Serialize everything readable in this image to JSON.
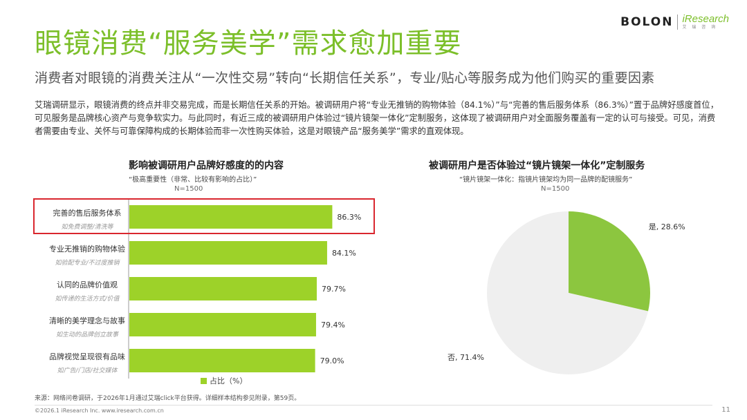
{
  "brand": {
    "bolon": "BOLON",
    "iresearch": "iResearch",
    "iresearch_cn": "艾 瑞 咨 询"
  },
  "title": "眼镜消费“服务美学”需求愈加重要",
  "subtitle": "消费者对眼镜的消费关注从“一次性交易”转向“长期信任关系”，专业/贴心等服务成为他们购买的重要因素",
  "body_text": "艾瑞调研显示，眼镜消费的终点并非交易完成，而是长期信任关系的开始。被调研用户将“专业无推销的购物体验（84.1%）”与“完善的售后服务体系（86.3%）”置于品牌好感度首位，可见服务是品牌核心资产与竞争软实力。与此同时，有近三成的被调研用户体验过“镜片镜架一体化”定制服务，这体现了被调研用户对全面服务覆盖有一定的认可与接受。可见，消费者需要由专业、关怀与可靠保障构成的长期体验而非一次性购买体验，这是对眼镜产品“服务美学”需求的直观体现。",
  "chart_data": [
    {
      "type": "bar",
      "orientation": "horizontal",
      "title": "影响被调研用户品牌好感度的的内容",
      "note": "“极高重要性（非常、比较有影响的占比）”",
      "n": "N=1500",
      "categories": [
        "完善的售后服务体系",
        "专业无推销的购物体验",
        "认同的品牌价值观",
        "清晰的美学理念与故事",
        "品牌视觉呈现很有品味"
      ],
      "subcategories": [
        "如免费调整/清洗等",
        "如验配专业/不过度推销",
        "如传递的生活方式/价值",
        "如生动的品牌创立故事",
        "如广告/门店/社交媒体"
      ],
      "values": [
        86.3,
        84.1,
        79.7,
        79.4,
        79.0
      ],
      "value_labels": [
        "86.3%",
        "84.1%",
        "79.7%",
        "79.4%",
        "79.0%"
      ],
      "legend": "占比（%）",
      "highlighted_index": 0,
      "color": "#9dd229"
    },
    {
      "type": "pie",
      "title": "被调研用户是否体验过“镜片镜架一体化”定制服务",
      "note": "“镜片镜架一体化：指镜片镜架均为同一品牌的配镜服务”",
      "n": "N=1500",
      "slices": [
        {
          "label": "是",
          "value": 28.6,
          "display": "是, 28.6%",
          "color": "#8cc63f"
        },
        {
          "label": "否",
          "value": 71.4,
          "display": "否, 71.4%",
          "color": "#efefef"
        }
      ]
    }
  ],
  "source": "来源：网络问卷调研，于2026年1月通过艾瑞click平台获得。详细样本结构参见附录，第59页。",
  "copyright": "©2026.1 iResearch Inc.                www.iresearch.com.cn",
  "page_number": "11"
}
